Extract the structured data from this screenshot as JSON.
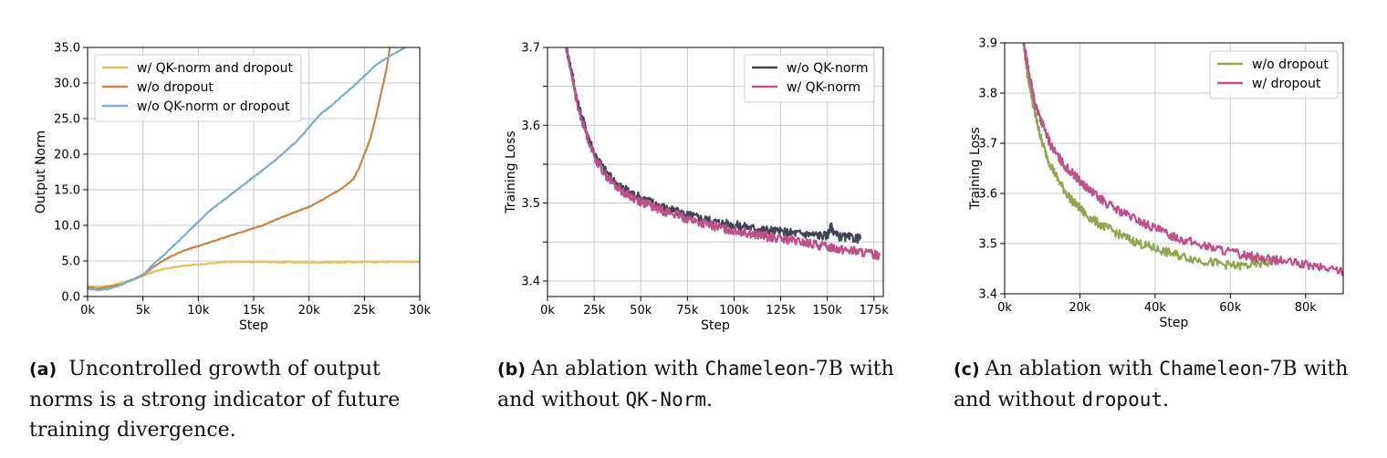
{
  "chart_data": [
    {
      "type": "line",
      "xlabel": "Step",
      "ylabel": "Output Norm",
      "xlim": [
        0,
        30000
      ],
      "ylim": [
        0,
        35
      ],
      "xticks": [
        0,
        5000,
        10000,
        15000,
        20000,
        25000,
        30000
      ],
      "xtick_labels": [
        "0k",
        "5k",
        "10k",
        "15k",
        "20k",
        "25k",
        "30k"
      ],
      "yticks": [
        0,
        5,
        10,
        15,
        20,
        25,
        30,
        35
      ],
      "ytick_labels": [
        "0.0",
        "5.0",
        "10.0",
        "15.0",
        "20.0",
        "25.0",
        "30.0",
        "35.0"
      ],
      "grid": true,
      "legend": "top-left",
      "series": [
        {
          "name": "w/ QK-norm and dropout",
          "color": "#e6bf57",
          "x": [
            0,
            1000,
            2000,
            3000,
            4000,
            5000,
            6000,
            7000,
            8000,
            10000,
            12000,
            14000,
            16000,
            18000,
            20000,
            22000,
            24000,
            26000,
            28000,
            30000
          ],
          "y": [
            1.4,
            1.4,
            1.5,
            1.9,
            2.3,
            2.9,
            3.5,
            3.9,
            4.2,
            4.5,
            4.8,
            4.85,
            4.85,
            4.8,
            4.78,
            4.8,
            4.82,
            4.85,
            4.85,
            4.85
          ]
        },
        {
          "name": "w/o dropout",
          "color": "#c98547",
          "x": [
            0,
            1000,
            2000,
            3000,
            4000,
            5000,
            6000,
            7000,
            8000,
            9000,
            10000,
            11000,
            12000,
            13000,
            14000,
            15000,
            16000,
            17000,
            18000,
            19000,
            20000,
            21000,
            22000,
            23000,
            24000,
            24500,
            25000,
            25500,
            26000,
            26500,
            27000,
            27300
          ],
          "y": [
            1.3,
            1.1,
            1.4,
            1.7,
            2.3,
            3.0,
            4.2,
            5.2,
            6.0,
            6.6,
            7.1,
            7.6,
            8.1,
            8.6,
            9.1,
            9.6,
            10.1,
            10.8,
            11.4,
            12.0,
            12.6,
            13.4,
            14.3,
            15.2,
            16.5,
            18.0,
            20.0,
            22.0,
            25.0,
            28.5,
            32.0,
            35.0
          ]
        },
        {
          "name": "w/o QK-norm or dropout",
          "color": "#7bafc7",
          "x": [
            0,
            1000,
            2000,
            3000,
            4000,
            5000,
            6000,
            7000,
            8000,
            9000,
            10000,
            11000,
            12000,
            13000,
            14000,
            15000,
            16000,
            17000,
            18000,
            19000,
            20000,
            21000,
            22000,
            23000,
            24000,
            25000,
            26000,
            27000,
            28000,
            28700
          ],
          "y": [
            1.1,
            0.9,
            1.1,
            1.6,
            2.3,
            3.1,
            4.6,
            6.0,
            7.5,
            9.0,
            10.5,
            12.0,
            13.2,
            14.4,
            15.6,
            16.8,
            18.0,
            19.2,
            20.6,
            22.0,
            23.8,
            25.6,
            26.8,
            28.2,
            29.5,
            31.0,
            32.5,
            33.5,
            34.4,
            35.0
          ]
        }
      ]
    },
    {
      "type": "line",
      "xlabel": "Step",
      "ylabel": "Training Loss",
      "xlim": [
        0,
        180000
      ],
      "ylim": [
        3.38,
        3.7
      ],
      "xticks": [
        0,
        25000,
        50000,
        75000,
        100000,
        125000,
        150000,
        175000
      ],
      "xtick_labels": [
        "0k",
        "25k",
        "50k",
        "75k",
        "100k",
        "125k",
        "150k",
        "175k"
      ],
      "yticks": [
        3.4,
        3.5,
        3.6,
        3.7
      ],
      "ytick_labels": [
        "3.4",
        "3.5",
        "3.6",
        "3.7"
      ],
      "ytick_minor": [
        3.45,
        3.55,
        3.65
      ],
      "grid": true,
      "legend": "top-right",
      "series": [
        {
          "name": "w/o QK-norm",
          "color": "#3d4556",
          "x": [
            10000,
            13000,
            16000,
            20000,
            25000,
            30000,
            35000,
            40000,
            45000,
            50000,
            55000,
            60000,
            65000,
            70000,
            75000,
            80000,
            85000,
            90000,
            95000,
            100000,
            105000,
            110000,
            115000,
            120000,
            125000,
            130000,
            135000,
            140000,
            145000,
            150000,
            152000,
            155000,
            160000,
            165000,
            168000
          ],
          "y": [
            3.7,
            3.67,
            3.63,
            3.6,
            3.565,
            3.545,
            3.53,
            3.52,
            3.513,
            3.507,
            3.502,
            3.497,
            3.492,
            3.488,
            3.485,
            3.482,
            3.479,
            3.476,
            3.474,
            3.472,
            3.47,
            3.468,
            3.466,
            3.465,
            3.463,
            3.462,
            3.461,
            3.46,
            3.459,
            3.458,
            3.47,
            3.458,
            3.456,
            3.455,
            3.454
          ]
        },
        {
          "name": "w/ QK-norm",
          "color": "#c0508a",
          "x": [
            10000,
            13000,
            16000,
            20000,
            25000,
            30000,
            35000,
            40000,
            45000,
            50000,
            55000,
            60000,
            65000,
            70000,
            75000,
            80000,
            85000,
            90000,
            95000,
            100000,
            105000,
            110000,
            115000,
            120000,
            125000,
            130000,
            135000,
            140000,
            145000,
            150000,
            155000,
            160000,
            165000,
            170000,
            175000,
            178000
          ],
          "y": [
            3.7,
            3.665,
            3.625,
            3.595,
            3.56,
            3.54,
            3.525,
            3.515,
            3.508,
            3.502,
            3.497,
            3.492,
            3.488,
            3.484,
            3.48,
            3.476,
            3.473,
            3.47,
            3.467,
            3.465,
            3.463,
            3.46,
            3.458,
            3.456,
            3.454,
            3.452,
            3.45,
            3.448,
            3.446,
            3.444,
            3.442,
            3.44,
            3.438,
            3.436,
            3.434,
            3.433
          ]
        }
      ]
    },
    {
      "type": "line",
      "xlabel": "Step",
      "ylabel": "Training Loss",
      "xlim": [
        0,
        90000
      ],
      "ylim": [
        3.4,
        3.9
      ],
      "xticks": [
        0,
        20000,
        40000,
        60000,
        80000
      ],
      "xtick_labels": [
        "0k",
        "20k",
        "40k",
        "60k",
        "80k"
      ],
      "yticks": [
        3.4,
        3.5,
        3.6,
        3.7,
        3.8,
        3.9
      ],
      "ytick_labels": [
        "3.4",
        "3.5",
        "3.6",
        "3.7",
        "3.8",
        "3.9"
      ],
      "grid": true,
      "legend": "top-right",
      "series": [
        {
          "name": "w/o dropout",
          "color": "#8fa84f",
          "x": [
            5000,
            6000,
            7000,
            8000,
            9000,
            10000,
            12000,
            14000,
            16000,
            18000,
            20000,
            22000,
            25000,
            28000,
            31000,
            34000,
            37000,
            40000,
            43000,
            46000,
            50000,
            54000,
            58000,
            62000,
            66000,
            70000,
            72000
          ],
          "y": [
            3.9,
            3.84,
            3.8,
            3.76,
            3.73,
            3.7,
            3.66,
            3.63,
            3.605,
            3.585,
            3.57,
            3.555,
            3.54,
            3.528,
            3.516,
            3.506,
            3.497,
            3.49,
            3.483,
            3.477,
            3.47,
            3.464,
            3.459,
            3.455,
            3.458,
            3.462,
            3.47
          ]
        },
        {
          "name": "w/ dropout",
          "color": "#c0508a",
          "x": [
            5000,
            6000,
            7000,
            8000,
            9000,
            10000,
            12000,
            14000,
            16000,
            18000,
            20000,
            22000,
            25000,
            28000,
            31000,
            34000,
            37000,
            40000,
            43000,
            46000,
            50000,
            54000,
            58000,
            62000,
            66000,
            70000,
            74000,
            78000,
            82000,
            86000,
            90000
          ],
          "y": [
            3.9,
            3.86,
            3.82,
            3.78,
            3.76,
            3.74,
            3.7,
            3.675,
            3.655,
            3.64,
            3.625,
            3.61,
            3.592,
            3.576,
            3.563,
            3.552,
            3.54,
            3.53,
            3.52,
            3.512,
            3.502,
            3.494,
            3.487,
            3.48,
            3.474,
            3.469,
            3.465,
            3.46,
            3.455,
            3.45,
            3.446
          ]
        }
      ]
    }
  ],
  "captions": [
    {
      "tag": "(a)",
      "text": "Uncontrolled growth of output norms is a strong indicator of future training divergence."
    },
    {
      "tag": "(b)",
      "text_before": "An ablation with ",
      "model": "Chameleon",
      "model_suffix": "-7B with and without ",
      "method": "QK-Norm",
      "text_after": "."
    },
    {
      "tag": "(c)",
      "text_before": "An ablation with ",
      "model": "Chameleon",
      "model_suffix": "-7B with and without ",
      "method": "dropout",
      "text_after": "."
    }
  ]
}
